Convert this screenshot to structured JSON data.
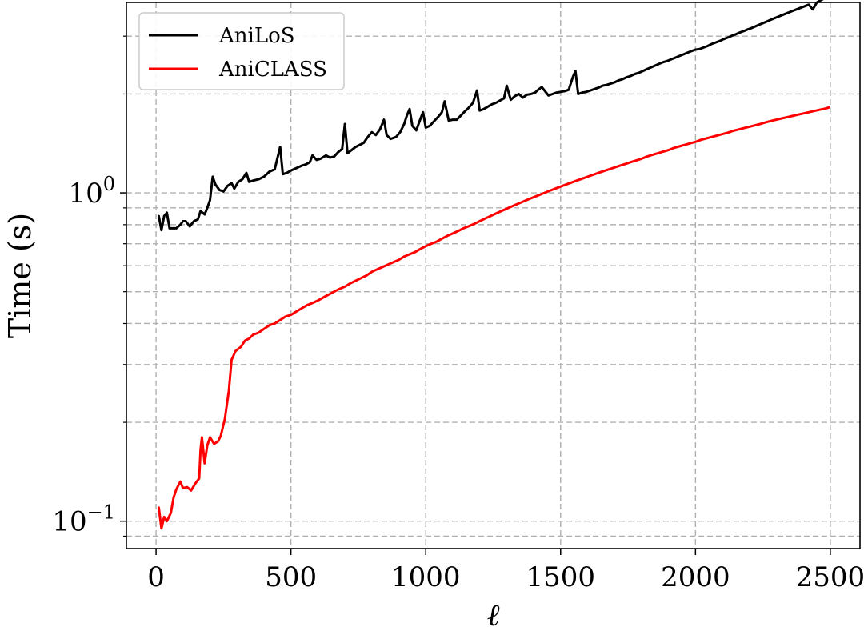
{
  "chart_data": {
    "type": "line",
    "xlabel": "ℓ",
    "ylabel": "Time (s)",
    "y_scale": "log",
    "xlim": [
      -110,
      2610
    ],
    "ylim": [
      0.0825,
      3.8
    ],
    "grid": true,
    "legend_position": "top-left",
    "x_ticks": [
      0,
      500,
      1000,
      1500,
      2000,
      2500
    ],
    "x_tick_labels": [
      "0",
      "500",
      "1000",
      "1500",
      "2000",
      "2500"
    ],
    "y_major_ticks": [
      0.1,
      1
    ],
    "y_tick_labels": [
      {
        "base": "10",
        "exp": "−1"
      },
      {
        "base": "10",
        "exp": "0"
      }
    ],
    "y_minor_ticks": [
      0.09,
      0.2,
      0.3,
      0.4,
      0.5,
      0.6,
      0.7,
      0.8,
      0.9,
      2,
      3
    ],
    "series": [
      {
        "name": "AniLoS",
        "color": "#000000",
        "points": [
          [
            10,
            0.85
          ],
          [
            20,
            0.77
          ],
          [
            30,
            0.85
          ],
          [
            40,
            0.87
          ],
          [
            50,
            0.78
          ],
          [
            60,
            0.78
          ],
          [
            75,
            0.78
          ],
          [
            90,
            0.8
          ],
          [
            100,
            0.82
          ],
          [
            110,
            0.82
          ],
          [
            125,
            0.79
          ],
          [
            140,
            0.82
          ],
          [
            155,
            0.83
          ],
          [
            165,
            0.88
          ],
          [
            180,
            0.86
          ],
          [
            190,
            0.9
          ],
          [
            200,
            0.95
          ],
          [
            210,
            1.12
          ],
          [
            220,
            1.06
          ],
          [
            235,
            1.02
          ],
          [
            250,
            1.01
          ],
          [
            265,
            1.05
          ],
          [
            280,
            1.07
          ],
          [
            290,
            1.03
          ],
          [
            305,
            1.08
          ],
          [
            320,
            1.1
          ],
          [
            335,
            1.15
          ],
          [
            345,
            1.08
          ],
          [
            360,
            1.09
          ],
          [
            380,
            1.1
          ],
          [
            400,
            1.12
          ],
          [
            420,
            1.16
          ],
          [
            440,
            1.18
          ],
          [
            460,
            1.38
          ],
          [
            470,
            1.14
          ],
          [
            485,
            1.15
          ],
          [
            500,
            1.17
          ],
          [
            520,
            1.19
          ],
          [
            540,
            1.21
          ],
          [
            555,
            1.22
          ],
          [
            570,
            1.24
          ],
          [
            580,
            1.3
          ],
          [
            595,
            1.26
          ],
          [
            610,
            1.27
          ],
          [
            630,
            1.3
          ],
          [
            645,
            1.28
          ],
          [
            660,
            1.29
          ],
          [
            675,
            1.33
          ],
          [
            690,
            1.36
          ],
          [
            700,
            1.62
          ],
          [
            710,
            1.32
          ],
          [
            725,
            1.35
          ],
          [
            740,
            1.38
          ],
          [
            755,
            1.4
          ],
          [
            770,
            1.42
          ],
          [
            785,
            1.48
          ],
          [
            800,
            1.53
          ],
          [
            815,
            1.5
          ],
          [
            830,
            1.56
          ],
          [
            845,
            1.67
          ],
          [
            855,
            1.5
          ],
          [
            870,
            1.46
          ],
          [
            890,
            1.48
          ],
          [
            905,
            1.53
          ],
          [
            920,
            1.62
          ],
          [
            930,
            1.72
          ],
          [
            940,
            1.8
          ],
          [
            950,
            1.6
          ],
          [
            965,
            1.55
          ],
          [
            980,
            1.68
          ],
          [
            990,
            1.76
          ],
          [
            1000,
            1.58
          ],
          [
            1015,
            1.6
          ],
          [
            1030,
            1.65
          ],
          [
            1045,
            1.7
          ],
          [
            1060,
            1.76
          ],
          [
            1070,
            1.9
          ],
          [
            1085,
            1.66
          ],
          [
            1100,
            1.67
          ],
          [
            1115,
            1.67
          ],
          [
            1130,
            1.72
          ],
          [
            1145,
            1.77
          ],
          [
            1160,
            1.82
          ],
          [
            1175,
            1.88
          ],
          [
            1190,
            2.05
          ],
          [
            1200,
            1.78
          ],
          [
            1215,
            1.8
          ],
          [
            1230,
            1.83
          ],
          [
            1245,
            1.86
          ],
          [
            1260,
            1.88
          ],
          [
            1275,
            1.91
          ],
          [
            1290,
            1.94
          ],
          [
            1300,
            2.12
          ],
          [
            1315,
            1.92
          ],
          [
            1330,
            1.97
          ],
          [
            1345,
            2.0
          ],
          [
            1360,
            1.95
          ],
          [
            1375,
            1.99
          ],
          [
            1390,
            2.0
          ],
          [
            1405,
            2.02
          ],
          [
            1420,
            2.07
          ],
          [
            1430,
            2.1
          ],
          [
            1440,
            2.05
          ],
          [
            1455,
            1.98
          ],
          [
            1470,
            2.0
          ],
          [
            1485,
            2.02
          ],
          [
            1500,
            2.03
          ],
          [
            1515,
            2.04
          ],
          [
            1530,
            2.06
          ],
          [
            1545,
            2.25
          ],
          [
            1555,
            2.35
          ],
          [
            1565,
            2.0
          ],
          [
            1580,
            2.02
          ],
          [
            1595,
            2.03
          ],
          [
            1610,
            2.05
          ],
          [
            1625,
            2.07
          ],
          [
            1640,
            2.09
          ],
          [
            1655,
            2.12
          ],
          [
            1670,
            2.13
          ],
          [
            1685,
            2.15
          ],
          [
            1700,
            2.17
          ],
          [
            1715,
            2.2
          ],
          [
            1730,
            2.22
          ],
          [
            1745,
            2.25
          ],
          [
            1760,
            2.27
          ],
          [
            1775,
            2.3
          ],
          [
            1790,
            2.32
          ],
          [
            1805,
            2.35
          ],
          [
            1820,
            2.38
          ],
          [
            1835,
            2.41
          ],
          [
            1850,
            2.44
          ],
          [
            1865,
            2.47
          ],
          [
            1880,
            2.5
          ],
          [
            1895,
            2.52
          ],
          [
            1910,
            2.55
          ],
          [
            1925,
            2.58
          ],
          [
            1940,
            2.61
          ],
          [
            1955,
            2.64
          ],
          [
            1970,
            2.67
          ],
          [
            1985,
            2.7
          ],
          [
            2000,
            2.73
          ],
          [
            2015,
            2.74
          ],
          [
            2030,
            2.77
          ],
          [
            2045,
            2.8
          ],
          [
            2060,
            2.84
          ],
          [
            2075,
            2.87
          ],
          [
            2090,
            2.9
          ],
          [
            2105,
            2.94
          ],
          [
            2120,
            2.97
          ],
          [
            2135,
            3.01
          ],
          [
            2150,
            3.04
          ],
          [
            2165,
            3.08
          ],
          [
            2180,
            3.11
          ],
          [
            2195,
            3.15
          ],
          [
            2210,
            3.18
          ],
          [
            2225,
            3.22
          ],
          [
            2240,
            3.26
          ],
          [
            2255,
            3.3
          ],
          [
            2270,
            3.34
          ],
          [
            2285,
            3.38
          ],
          [
            2300,
            3.42
          ],
          [
            2315,
            3.46
          ],
          [
            2330,
            3.5
          ],
          [
            2345,
            3.54
          ],
          [
            2360,
            3.58
          ],
          [
            2375,
            3.62
          ],
          [
            2390,
            3.66
          ],
          [
            2405,
            3.7
          ],
          [
            2420,
            3.74
          ],
          [
            2435,
            3.62
          ],
          [
            2450,
            3.8
          ],
          [
            2465,
            3.86
          ],
          [
            2480,
            3.92
          ],
          [
            2495,
            3.98
          ]
        ]
      },
      {
        "name": "AniCLASS",
        "color": "#ff0000",
        "points": [
          [
            10,
            0.11
          ],
          [
            20,
            0.095
          ],
          [
            30,
            0.103
          ],
          [
            40,
            0.1
          ],
          [
            55,
            0.106
          ],
          [
            65,
            0.118
          ],
          [
            75,
            0.125
          ],
          [
            90,
            0.132
          ],
          [
            100,
            0.126
          ],
          [
            115,
            0.127
          ],
          [
            130,
            0.124
          ],
          [
            145,
            0.13
          ],
          [
            160,
            0.135
          ],
          [
            165,
            0.165
          ],
          [
            170,
            0.18
          ],
          [
            180,
            0.15
          ],
          [
            190,
            0.17
          ],
          [
            200,
            0.18
          ],
          [
            215,
            0.172
          ],
          [
            230,
            0.175
          ],
          [
            240,
            0.182
          ],
          [
            255,
            0.205
          ],
          [
            270,
            0.25
          ],
          [
            280,
            0.31
          ],
          [
            295,
            0.33
          ],
          [
            315,
            0.34
          ],
          [
            330,
            0.355
          ],
          [
            345,
            0.36
          ],
          [
            360,
            0.37
          ],
          [
            380,
            0.375
          ],
          [
            400,
            0.385
          ],
          [
            420,
            0.395
          ],
          [
            440,
            0.4
          ],
          [
            460,
            0.41
          ],
          [
            480,
            0.42
          ],
          [
            500,
            0.425
          ],
          [
            520,
            0.435
          ],
          [
            540,
            0.445
          ],
          [
            560,
            0.455
          ],
          [
            580,
            0.462
          ],
          [
            600,
            0.47
          ],
          [
            620,
            0.48
          ],
          [
            640,
            0.49
          ],
          [
            660,
            0.5
          ],
          [
            680,
            0.51
          ],
          [
            700,
            0.518
          ],
          [
            720,
            0.53
          ],
          [
            740,
            0.54
          ],
          [
            760,
            0.55
          ],
          [
            780,
            0.56
          ],
          [
            800,
            0.575
          ],
          [
            820,
            0.585
          ],
          [
            840,
            0.595
          ],
          [
            860,
            0.605
          ],
          [
            880,
            0.615
          ],
          [
            900,
            0.625
          ],
          [
            920,
            0.64
          ],
          [
            940,
            0.65
          ],
          [
            960,
            0.66
          ],
          [
            980,
            0.675
          ],
          [
            1000,
            0.688
          ],
          [
            1020,
            0.7
          ],
          [
            1040,
            0.71
          ],
          [
            1060,
            0.725
          ],
          [
            1080,
            0.74
          ],
          [
            1100,
            0.752
          ],
          [
            1120,
            0.765
          ],
          [
            1140,
            0.78
          ],
          [
            1160,
            0.792
          ],
          [
            1180,
            0.805
          ],
          [
            1200,
            0.82
          ],
          [
            1220,
            0.835
          ],
          [
            1240,
            0.85
          ],
          [
            1260,
            0.865
          ],
          [
            1280,
            0.88
          ],
          [
            1300,
            0.895
          ],
          [
            1320,
            0.91
          ],
          [
            1340,
            0.925
          ],
          [
            1360,
            0.94
          ],
          [
            1380,
            0.955
          ],
          [
            1400,
            0.97
          ],
          [
            1420,
            0.985
          ],
          [
            1440,
            1.0
          ],
          [
            1460,
            1.015
          ],
          [
            1480,
            1.03
          ],
          [
            1500,
            1.045
          ],
          [
            1520,
            1.06
          ],
          [
            1540,
            1.075
          ],
          [
            1560,
            1.09
          ],
          [
            1580,
            1.105
          ],
          [
            1600,
            1.12
          ],
          [
            1620,
            1.135
          ],
          [
            1640,
            1.15
          ],
          [
            1660,
            1.165
          ],
          [
            1680,
            1.18
          ],
          [
            1700,
            1.195
          ],
          [
            1720,
            1.21
          ],
          [
            1740,
            1.225
          ],
          [
            1760,
            1.24
          ],
          [
            1780,
            1.255
          ],
          [
            1800,
            1.27
          ],
          [
            1820,
            1.29
          ],
          [
            1840,
            1.305
          ],
          [
            1860,
            1.32
          ],
          [
            1880,
            1.335
          ],
          [
            1900,
            1.35
          ],
          [
            1920,
            1.37
          ],
          [
            1940,
            1.385
          ],
          [
            1960,
            1.4
          ],
          [
            1980,
            1.415
          ],
          [
            2000,
            1.43
          ],
          [
            2020,
            1.45
          ],
          [
            2040,
            1.465
          ],
          [
            2060,
            1.48
          ],
          [
            2080,
            1.495
          ],
          [
            2100,
            1.51
          ],
          [
            2120,
            1.525
          ],
          [
            2140,
            1.545
          ],
          [
            2160,
            1.56
          ],
          [
            2180,
            1.575
          ],
          [
            2200,
            1.59
          ],
          [
            2220,
            1.605
          ],
          [
            2240,
            1.62
          ],
          [
            2260,
            1.64
          ],
          [
            2280,
            1.655
          ],
          [
            2300,
            1.67
          ],
          [
            2320,
            1.685
          ],
          [
            2340,
            1.7
          ],
          [
            2360,
            1.715
          ],
          [
            2380,
            1.73
          ],
          [
            2400,
            1.745
          ],
          [
            2420,
            1.76
          ],
          [
            2440,
            1.775
          ],
          [
            2460,
            1.79
          ],
          [
            2480,
            1.805
          ],
          [
            2495,
            1.82
          ]
        ]
      }
    ]
  }
}
